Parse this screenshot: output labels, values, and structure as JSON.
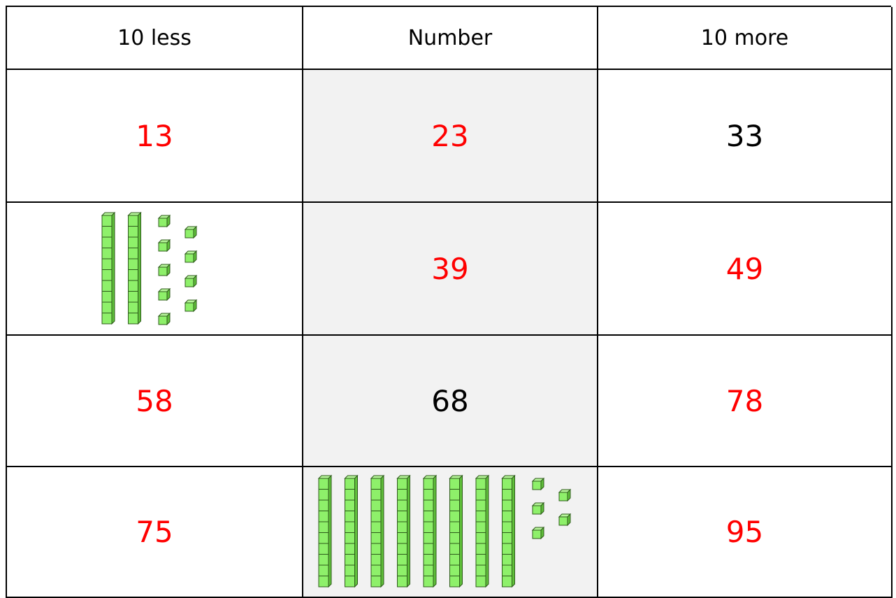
{
  "table": {
    "headers": [
      "10 less",
      "Number",
      "10 more"
    ],
    "rows": [
      [
        {
          "text": "13",
          "color": "#ff0000"
        },
        {
          "text": "23",
          "color": "#ff0000"
        },
        {
          "text": "33",
          "color": "#000000"
        }
      ],
      [
        {
          "tens": 2,
          "ones": 9
        },
        {
          "text": "39",
          "color": "#ff0000"
        },
        {
          "text": "49",
          "color": "#ff0000"
        }
      ],
      [
        {
          "text": "58",
          "color": "#ff0000"
        },
        {
          "text": "68",
          "color": "#000000"
        },
        {
          "text": "78",
          "color": "#ff0000"
        }
      ],
      [
        {
          "text": "75",
          "color": "#ff0000"
        },
        {
          "tens": 8,
          "ones": 5
        },
        {
          "text": "95",
          "color": "#ff0000"
        }
      ]
    ]
  }
}
